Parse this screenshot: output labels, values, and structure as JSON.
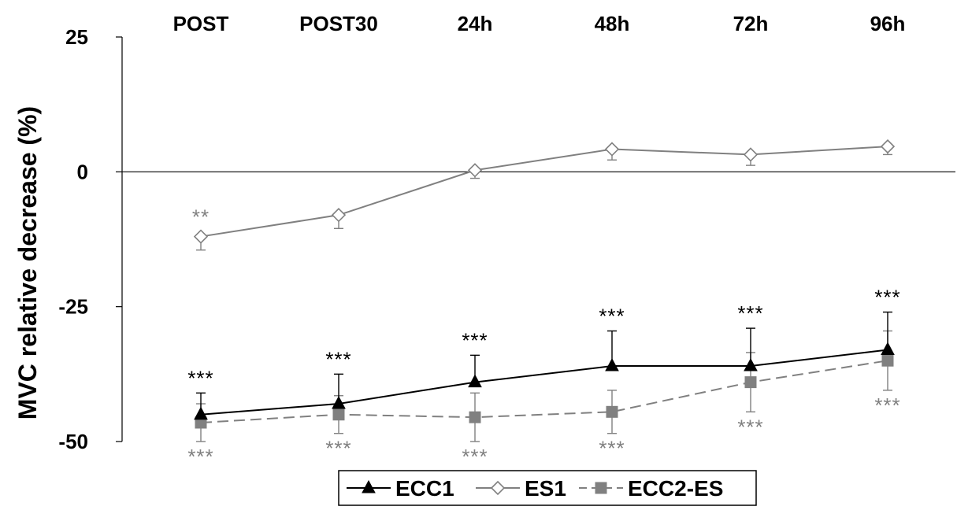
{
  "chart_data": {
    "type": "line",
    "title": "",
    "xlabel": "",
    "ylabel": "MVC relative decrease (%)",
    "categories": [
      "POST",
      "POST30",
      "24h",
      "48h",
      "72h",
      "96h"
    ],
    "category_position": "top",
    "ylim": [
      -50,
      25
    ],
    "yticks": [
      "25",
      "0",
      "-25",
      "-50"
    ],
    "grid": false,
    "legend_position": "bottom-center",
    "series": [
      {
        "name": "ECC1",
        "color": "#000000",
        "marker": "triangle-filled",
        "line_style": "solid",
        "values": [
          -45,
          -43,
          -39,
          -36,
          -36,
          -33
        ],
        "error": [
          4,
          5.5,
          5,
          6.5,
          7,
          7
        ],
        "error_direction": "up",
        "significance": [
          "***",
          "***",
          "***",
          "***",
          "***",
          "***"
        ],
        "significance_position": "above"
      },
      {
        "name": "ES1",
        "color": "#808080",
        "marker": "diamond-open",
        "line_style": "solid",
        "values": [
          -12,
          -8,
          0.3,
          4.2,
          3.2,
          4.7
        ],
        "error": [
          2.5,
          2.5,
          1.5,
          2,
          2,
          1.5
        ],
        "error_direction": "down",
        "significance": [
          "**",
          "",
          "",
          "",
          "",
          ""
        ],
        "significance_position": "above"
      },
      {
        "name": "ECC2-ES",
        "color": "#808080",
        "marker": "square-filled",
        "line_style": "dashed",
        "values": [
          -46.5,
          -45,
          -45.5,
          -44.5,
          -39,
          -35
        ],
        "error": [
          3.5,
          3.5,
          4.5,
          4,
          5.5,
          5.5
        ],
        "error_direction": "both",
        "significance": [
          "***",
          "***",
          "***",
          "***",
          "***",
          "***"
        ],
        "significance_position": "below"
      }
    ]
  }
}
